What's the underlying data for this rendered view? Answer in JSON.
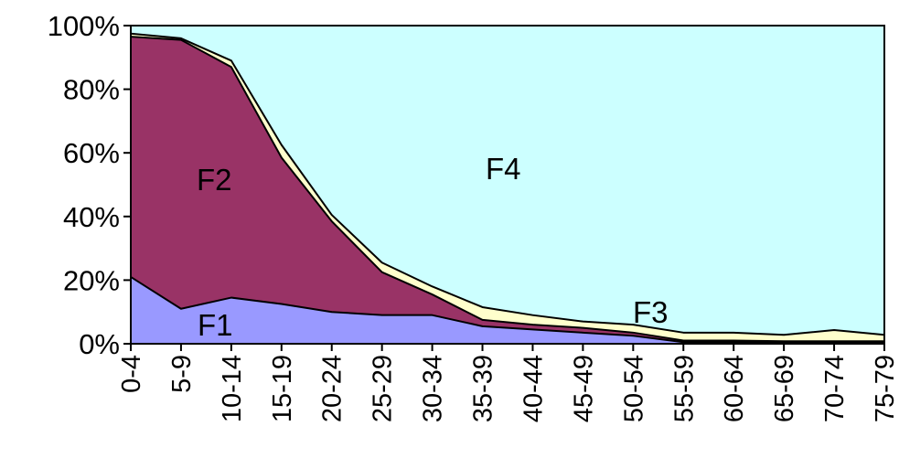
{
  "chart_data": {
    "type": "area",
    "stacked": "percent",
    "categories": [
      "0-4",
      "5-9",
      "10-14",
      "15-19",
      "20-24",
      "25-29",
      "30-34",
      "35-39",
      "40-44",
      "45-49",
      "50-54",
      "55-59",
      "60-64",
      "65-69",
      "70-74",
      "75-79"
    ],
    "series": [
      {
        "name": "F1",
        "color": "#9999ff",
        "values": [
          21,
          11,
          14.5,
          12.5,
          10,
          9,
          9,
          5.5,
          4.5,
          3.5,
          2.5,
          0.5,
          0.5,
          0.5,
          0.5,
          0.5
        ]
      },
      {
        "name": "F2",
        "color": "#993366",
        "values": [
          75.5,
          84.5,
          72.5,
          46,
          28.5,
          13.5,
          6.5,
          2,
          1.5,
          1.5,
          1,
          0.5,
          0.5,
          0.3,
          0.3,
          0.3
        ]
      },
      {
        "name": "F3",
        "color": "#ffffcc",
        "values": [
          1,
          0.5,
          2,
          4,
          2,
          3,
          2.5,
          4,
          3,
          2,
          2.5,
          2.5,
          2.5,
          2,
          3.5,
          2
        ]
      },
      {
        "name": "F4",
        "color": "#ccffff",
        "values": [
          2.5,
          4,
          11,
          37.5,
          59.5,
          74.5,
          82,
          88.5,
          91,
          93,
          94,
          96.5,
          96.5,
          97.2,
          95.7,
          97.2
        ]
      }
    ],
    "yticks": [
      "0%",
      "20%",
      "40%",
      "60%",
      "80%",
      "100%"
    ],
    "ylim": [
      0,
      100
    ],
    "grid": false,
    "legend": "none",
    "title": "",
    "xlabel": "",
    "ylabel": ""
  }
}
